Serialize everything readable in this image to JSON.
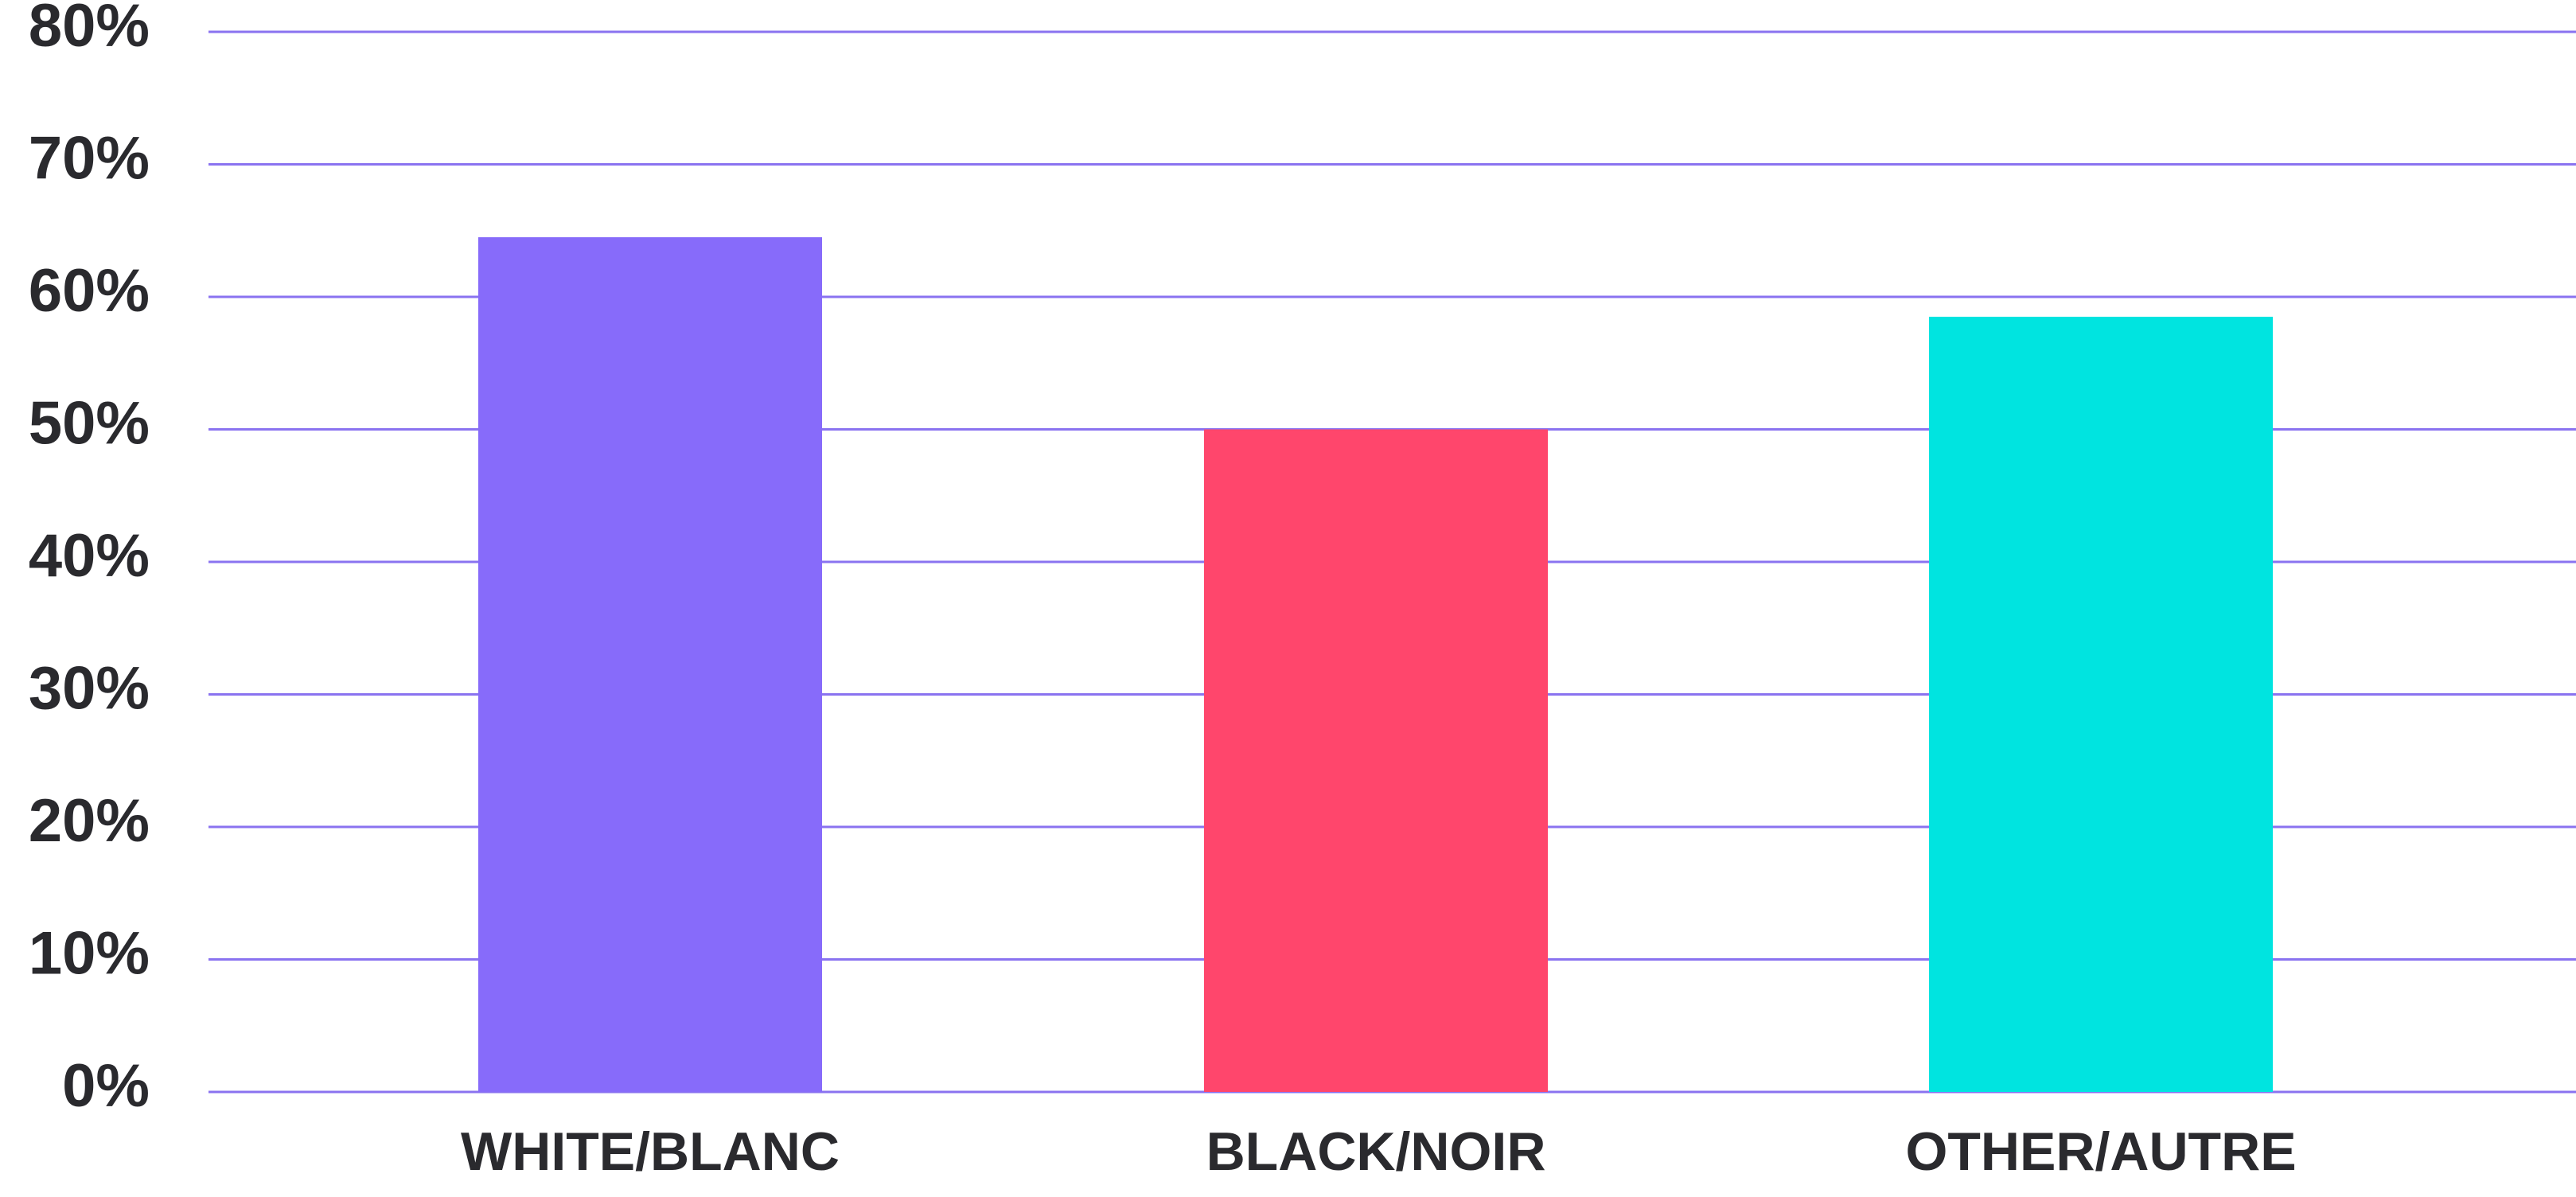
{
  "chart_data": {
    "type": "bar",
    "title": "",
    "xlabel": "",
    "ylabel": "",
    "categories": [
      "WHITE/BLANC",
      "BLACK/NOIR",
      "OTHER/AUTRE"
    ],
    "values": [
      64.5,
      50,
      58.5
    ],
    "unit": "%",
    "ylim": [
      0,
      80
    ],
    "yticks": [
      0,
      10,
      20,
      30,
      40,
      50,
      60,
      70,
      80
    ],
    "ytick_labels": [
      "0%",
      "10%",
      "20%",
      "30%",
      "40%",
      "50%",
      "60%",
      "70%",
      "80%"
    ],
    "bar_colors": [
      "#876bfa",
      "#ff466c",
      "#00e4e0"
    ],
    "grid": true,
    "grid_color": "#8a73f0",
    "text_color": "#2a2a2e",
    "legend": "none"
  }
}
